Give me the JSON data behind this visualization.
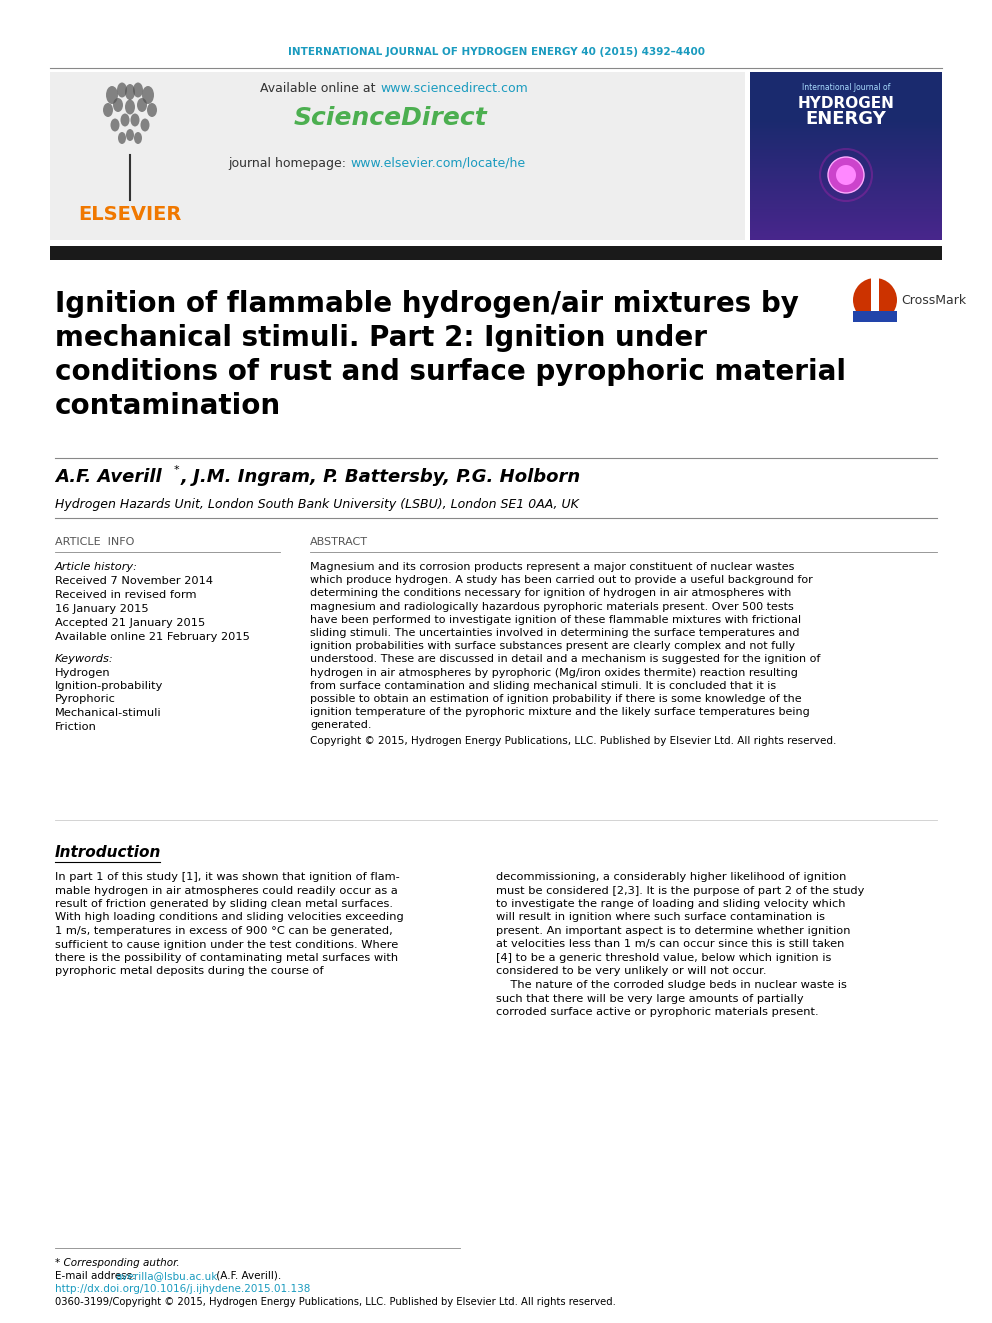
{
  "journal_header": "INTERNATIONAL JOURNAL OF HYDROGEN ENERGY 40 (2015) 4392–4400",
  "journal_header_color": "#1a9bbf",
  "available_online_text": "Available online at ",
  "sciencedirect_url": "www.sciencedirect.com",
  "sciencedirect_url_color": "#1a9bbf",
  "sciencedirect_logo_color": "#4caf50",
  "journal_homepage_text": "journal homepage: ",
  "journal_homepage_url": "www.elsevier.com/locate/he",
  "journal_homepage_url_color": "#1a9bbf",
  "elsevier_color": "#f07800",
  "header_bg": "#eeeeee",
  "black_bar_color": "#1a1a1a",
  "title_line1": "Ignition of flammable hydrogen/air mixtures by",
  "title_line2": "mechanical stimuli. Part 2: Ignition under",
  "title_line3": "conditions of rust and surface pyrophoric material",
  "title_line4": "contamination",
  "title_fontsize": 20,
  "affiliation": "Hydrogen Hazards Unit, London South Bank University (LSBU), London SE1 0AA, UK",
  "article_info_label": "ARTICLE  INFO",
  "abstract_label": "ABSTRACT",
  "article_history_label": "Article history:",
  "received1": "Received 7 November 2014",
  "received2": "Received in revised form",
  "received2b": "16 January 2015",
  "accepted": "Accepted 21 January 2015",
  "available_online": "Available online 21 February 2015",
  "keywords_label": "Keywords:",
  "keywords": [
    "Hydrogen",
    "Ignition-probability",
    "Pyrophoric",
    "Mechanical-stimuli",
    "Friction"
  ],
  "copyright_text": "Copyright © 2015, Hydrogen Energy Publications, LLC. Published by Elsevier Ltd. All rights reserved.",
  "intro_heading": "Introduction",
  "footnote_star": "* Corresponding author.",
  "footnote_email_label": "E-mail address: ",
  "footnote_email": "averilla@lsbu.ac.uk",
  "footnote_email_suffix": " (A.F. Averill).",
  "footnote_doi": "http://dx.doi.org/10.1016/j.ijhydene.2015.01.138",
  "footnote_issn": "0360-3199/Copyright © 2015, Hydrogen Energy Publications, LLC. Published by Elsevier Ltd. All rights reserved.",
  "link_color": "#1a9bbf",
  "text_color": "#000000",
  "bg_color": "#ffffff",
  "abstract_lines": [
    "Magnesium and its corrosion products represent a major constituent of nuclear wastes",
    "which produce hydrogen. A study has been carried out to provide a useful background for",
    "determining the conditions necessary for ignition of hydrogen in air atmospheres with",
    "magnesium and radiologically hazardous pyrophoric materials present. Over 500 tests",
    "have been performed to investigate ignition of these flammable mixtures with frictional",
    "sliding stimuli. The uncertainties involved in determining the surface temperatures and",
    "ignition probabilities with surface substances present are clearly complex and not fully",
    "understood. These are discussed in detail and a mechanism is suggested for the ignition of",
    "hydrogen in air atmospheres by pyrophoric (Mg/iron oxides thermite) reaction resulting",
    "from surface contamination and sliding mechanical stimuli. It is concluded that it is",
    "possible to obtain an estimation of ignition probability if there is some knowledge of the",
    "ignition temperature of the pyrophoric mixture and the likely surface temperatures being",
    "generated."
  ],
  "intro_col1_lines": [
    "In part 1 of this study [1], it was shown that ignition of flam-",
    "mable hydrogen in air atmospheres could readily occur as a",
    "result of friction generated by sliding clean metal surfaces.",
    "With high loading conditions and sliding velocities exceeding",
    "1 m/s, temperatures in excess of 900 °C can be generated,",
    "sufficient to cause ignition under the test conditions. Where",
    "there is the possibility of contaminating metal surfaces with",
    "pyrophoric metal deposits during the course of"
  ],
  "intro_col2_lines": [
    "decommissioning, a considerably higher likelihood of ignition",
    "must be considered [2,3]. It is the purpose of part 2 of the study",
    "to investigate the range of loading and sliding velocity which",
    "will result in ignition where such surface contamination is",
    "present. An important aspect is to determine whether ignition",
    "at velocities less than 1 m/s can occur since this is still taken",
    "[4] to be a generic threshold value, below which ignition is",
    "considered to be very unlikely or will not occur.",
    "    The nature of the corroded sludge beds in nuclear waste is",
    "such that there will be very large amounts of partially",
    "corroded surface active or pyrophoric materials present."
  ]
}
